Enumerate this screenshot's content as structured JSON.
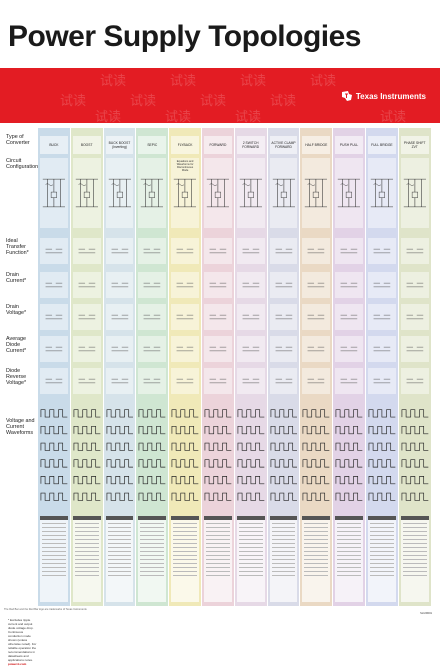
{
  "title": "Power Supply Topologies",
  "brand": "Texas Instruments",
  "brand_color": "#e31c23",
  "watermark": "试读",
  "row_labels": [
    "Type of Converter",
    "Circuit Configuration",
    "Ideal Transfer Function*",
    "Drain Current*",
    "Drain Voltage*",
    "Average Diode Current*",
    "Diode Reverse Voltage*",
    "Voltage and Current Waveforms"
  ],
  "columns": [
    {
      "name": "BUCK",
      "color": "#c9dbe9"
    },
    {
      "name": "BOOST",
      "color": "#dfe7c9"
    },
    {
      "name": "BUCK BOOST (Inverting)",
      "color": "#d6e3ea"
    },
    {
      "name": "SEPIC",
      "color": "#cfe6d2"
    },
    {
      "name": "FLYBACK",
      "color": "#f0e9b8"
    },
    {
      "name": "FORWARD",
      "color": "#ecd3da"
    },
    {
      "name": "2 SWITCH FORWARD",
      "color": "#e6d9e6"
    },
    {
      "name": "ACTIVE CLAMP FORWARD",
      "color": "#d9dbe8"
    },
    {
      "name": "HALF BRIDGE",
      "color": "#ead9c4"
    },
    {
      "name": "PUSH PULL",
      "color": "#e2d2e6"
    },
    {
      "name": "FULL BRIDGE",
      "color": "#d3d9ee"
    },
    {
      "name": "PHASE SHIFT ZVT",
      "color": "#dfe4c9"
    }
  ],
  "flyback_note": "Equations and Waveforms for Discontinuous Mode",
  "footnote_pre": "* Excludes ripple current and output diode voltage drop. Continuous conduction mode shown (unless otherwise noted). For reliable operation the recommendations in datasheets and applications notes.",
  "footnote_link": "power.ti.com",
  "lit_number": "SLUW001",
  "bottom_text": "The Red Bar and the Red Bar logo are trademarks of Texas Instruments"
}
